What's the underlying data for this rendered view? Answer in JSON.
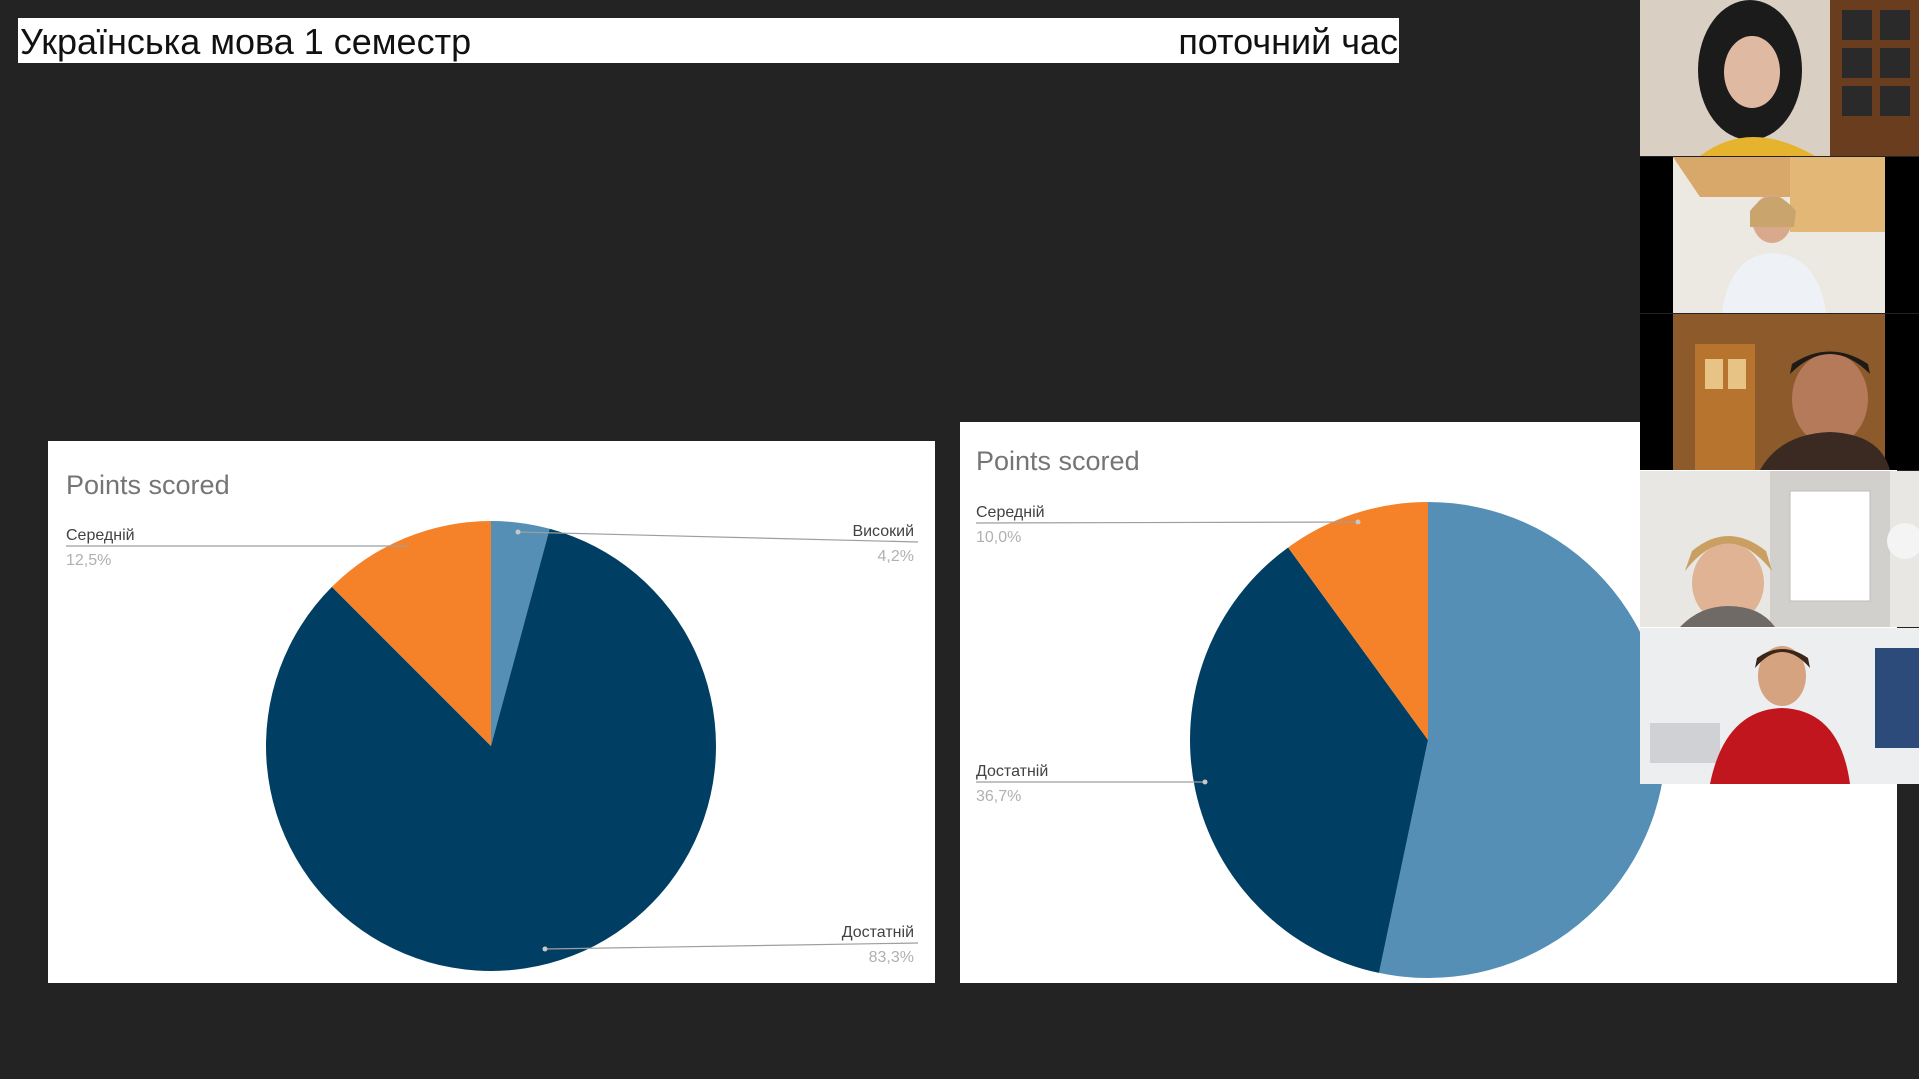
{
  "header": {
    "title": "Українська мова 1 семестр",
    "time_label": "поточний час"
  },
  "colors": {
    "background": "#232323",
    "low": "#f58229",
    "mid": "#003f63",
    "high": "#558fb6",
    "leader": "#9e9e9e",
    "panel": "#ffffff"
  },
  "chart_data": [
    {
      "type": "pie",
      "title": "Points scored",
      "slices": [
        {
          "label": "Високий",
          "value": 4.2,
          "display": "4,2%",
          "color": "#558fb6"
        },
        {
          "label": "Достатній",
          "value": 83.3,
          "display": "83,3%",
          "color": "#003f63"
        },
        {
          "label": "Середній",
          "value": 12.5,
          "display": "12,5%",
          "color": "#f58229"
        }
      ],
      "legend": "none"
    },
    {
      "type": "pie",
      "title": "Points scored",
      "slices": [
        {
          "label": "",
          "value": 53.3,
          "display": "",
          "color": "#558fb6"
        },
        {
          "label": "Достатній",
          "value": 36.7,
          "display": "36,7%",
          "color": "#003f63"
        },
        {
          "label": "Середній",
          "value": 10.0,
          "display": "10,0%",
          "color": "#f58229"
        }
      ],
      "legend": "none"
    }
  ],
  "participants": [
    {
      "name": "participant-1",
      "camera": "on"
    },
    {
      "name": "participant-2",
      "camera": "on"
    },
    {
      "name": "participant-3",
      "camera": "on"
    },
    {
      "name": "participant-4",
      "camera": "on"
    },
    {
      "name": "participant-5",
      "camera": "on"
    }
  ]
}
